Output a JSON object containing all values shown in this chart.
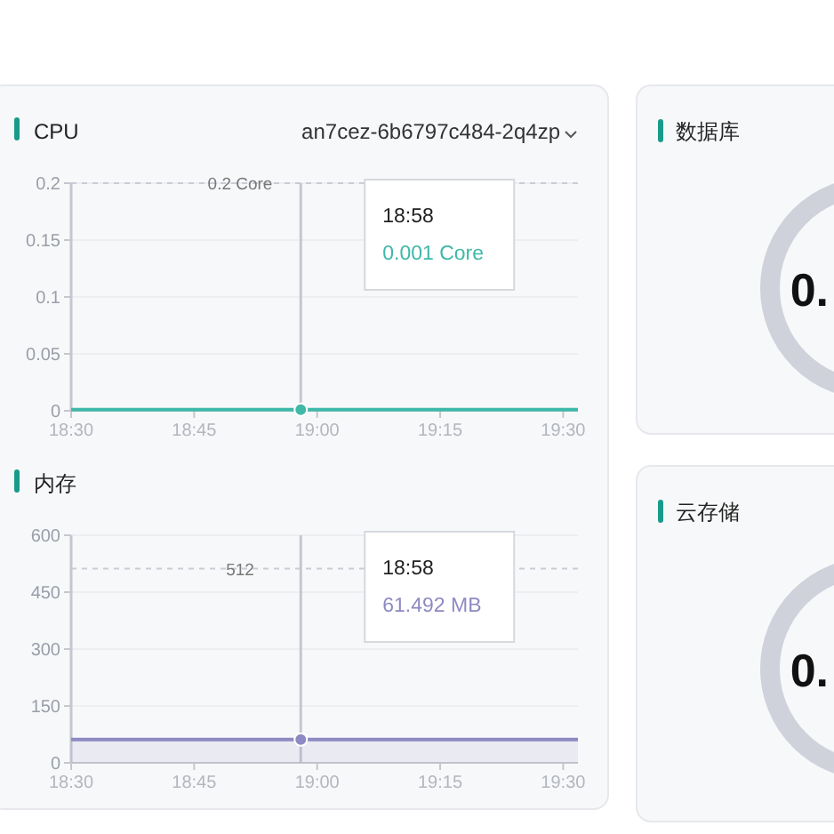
{
  "chart_data": [
    {
      "type": "line",
      "title": "CPU",
      "subtitle": "an7cez-6b6797c484-2q4zp",
      "xlim": [
        18.5,
        19.53
      ],
      "xticks": [
        {
          "value": 18.5,
          "label": "18:30"
        },
        {
          "value": 18.75,
          "label": "18:45"
        },
        {
          "value": 19,
          "label": "19:00"
        },
        {
          "value": 19.25,
          "label": "19:15"
        },
        {
          "value": 19.5,
          "label": "19:30"
        }
      ],
      "ylim": [
        0,
        0.2
      ],
      "yticks": [
        0,
        0.05,
        0.1,
        0.15,
        0.2
      ],
      "grid": "y",
      "x": [
        18.5,
        18.9667,
        19.53
      ],
      "series": [
        {
          "color": "#3fb8a9",
          "values": [
            0.001,
            0.001,
            0.001
          ]
        }
      ],
      "ref_lines": [
        {
          "axis": "y",
          "value": 0.2,
          "label": "0.2 Core",
          "color": "#c9ccd3",
          "line_style": "dashed"
        },
        {
          "axis": "x",
          "value": 18.9667,
          "color": "#c4c7ce",
          "line_style": "solid"
        }
      ],
      "annotations": [
        "18:58",
        "0.001 Core"
      ]
    },
    {
      "type": "area",
      "title": "内存",
      "xlim": [
        18.5,
        19.53
      ],
      "xticks": [
        {
          "value": 18.5,
          "label": "18:30"
        },
        {
          "value": 18.75,
          "label": "18:45"
        },
        {
          "value": 19,
          "label": "19:00"
        },
        {
          "value": 19.25,
          "label": "19:15"
        },
        {
          "value": 19.5,
          "label": "19:30"
        }
      ],
      "ylim": [
        0,
        600
      ],
      "yticks": [
        0,
        150,
        300,
        450,
        600
      ],
      "grid": "y",
      "x": [
        18.5,
        18.9667,
        19.53
      ],
      "series": [
        {
          "color": "#8d89c2",
          "values": [
            61.492,
            61.492,
            61.492
          ]
        }
      ],
      "ref_lines": [
        {
          "axis": "y",
          "value": 512,
          "label": "512",
          "color": "#c9ccd3",
          "line_style": "dashed"
        },
        {
          "axis": "x",
          "value": 18.9667,
          "color": "#c4c7ce",
          "line_style": "solid"
        }
      ],
      "annotations": [
        "18:58",
        "61.492 MB"
      ]
    },
    {
      "type": "other",
      "title": "数据库",
      "annotations": [
        "0."
      ]
    },
    {
      "type": "other",
      "title": "云存储",
      "annotations": [
        "0."
      ]
    }
  ]
}
